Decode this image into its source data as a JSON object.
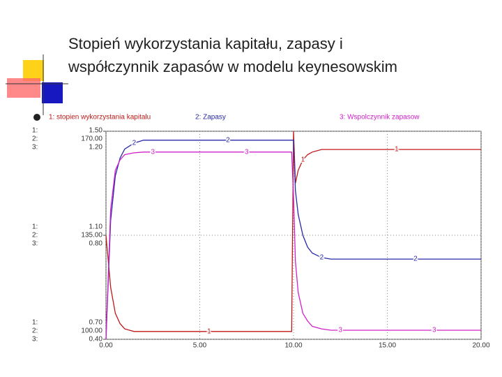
{
  "title": "Stopień wykorzystania kapitału, zapasy i współczynnik zapasów w modelu keynesowskim",
  "chart_data": {
    "type": "line",
    "x": [
      0,
      0.25,
      0.5,
      0.75,
      1,
      1.5,
      2,
      3,
      4,
      5,
      6,
      7,
      8,
      9,
      9.9,
      10,
      10.1,
      10.25,
      10.5,
      10.75,
      11,
      11.5,
      12,
      13,
      14,
      15,
      16,
      17,
      18,
      19,
      20
    ],
    "xlim": [
      0,
      20
    ],
    "xticks": [
      {
        "value": 0,
        "label": "0.00"
      },
      {
        "value": 5,
        "label": "5.00"
      },
      {
        "value": 10,
        "label": "10.00"
      },
      {
        "value": 15,
        "label": "15.00"
      },
      {
        "value": 20,
        "label": "20.00"
      }
    ],
    "grid": true,
    "series": [
      {
        "name": "1: stopien wykorzystania kapitalu",
        "marker": "1",
        "axis_label": "1:",
        "color": "#c01818",
        "ylim": [
          0.7,
          1.5
        ],
        "yticks": [
          {
            "value": 0.7,
            "label": "0.70"
          },
          {
            "value": 1.1,
            "label": "1.10"
          },
          {
            "value": 1.5,
            "label": "1.50"
          }
        ],
        "values": [
          1.1,
          0.9,
          0.8,
          0.76,
          0.74,
          0.73,
          0.73,
          0.73,
          0.73,
          0.73,
          0.73,
          0.73,
          0.73,
          0.73,
          0.73,
          1.5,
          1.3,
          1.35,
          1.39,
          1.41,
          1.42,
          1.43,
          1.43,
          1.43,
          1.43,
          1.43,
          1.43,
          1.43,
          1.43,
          1.43,
          1.43
        ]
      },
      {
        "name": "2: Zapasy",
        "marker": "2",
        "axis_label": "2:",
        "color": "#2828a8",
        "ylim": [
          100,
          170
        ],
        "yticks": [
          {
            "value": 100,
            "label": "100.00"
          },
          {
            "value": 135,
            "label": "135.00"
          },
          {
            "value": 170,
            "label": "170.00"
          }
        ],
        "values": [
          100,
          140,
          155,
          161,
          164,
          166,
          167,
          167,
          167,
          167,
          167,
          167,
          167,
          167,
          167,
          167,
          150,
          142,
          135,
          131,
          129,
          127.5,
          127,
          127,
          127,
          127,
          127,
          127,
          127,
          127,
          127
        ]
      },
      {
        "name": "3: Wspolczynnik zapasow",
        "marker": "3",
        "axis_label": "3:",
        "color": "#d020c8",
        "ylim": [
          0.4,
          1.2
        ],
        "yticks": [
          {
            "value": 0.4,
            "label": "0.40"
          },
          {
            "value": 0.8,
            "label": "0.80"
          },
          {
            "value": 1.2,
            "label": "1.20"
          }
        ],
        "values": [
          0.4,
          0.9,
          1.05,
          1.09,
          1.11,
          1.117,
          1.12,
          1.12,
          1.12,
          1.12,
          1.12,
          1.12,
          1.12,
          1.12,
          1.12,
          0.95,
          0.7,
          0.58,
          0.5,
          0.47,
          0.45,
          0.44,
          0.435,
          0.435,
          0.435,
          0.435,
          0.435,
          0.435,
          0.435,
          0.435,
          0.435
        ]
      }
    ]
  }
}
